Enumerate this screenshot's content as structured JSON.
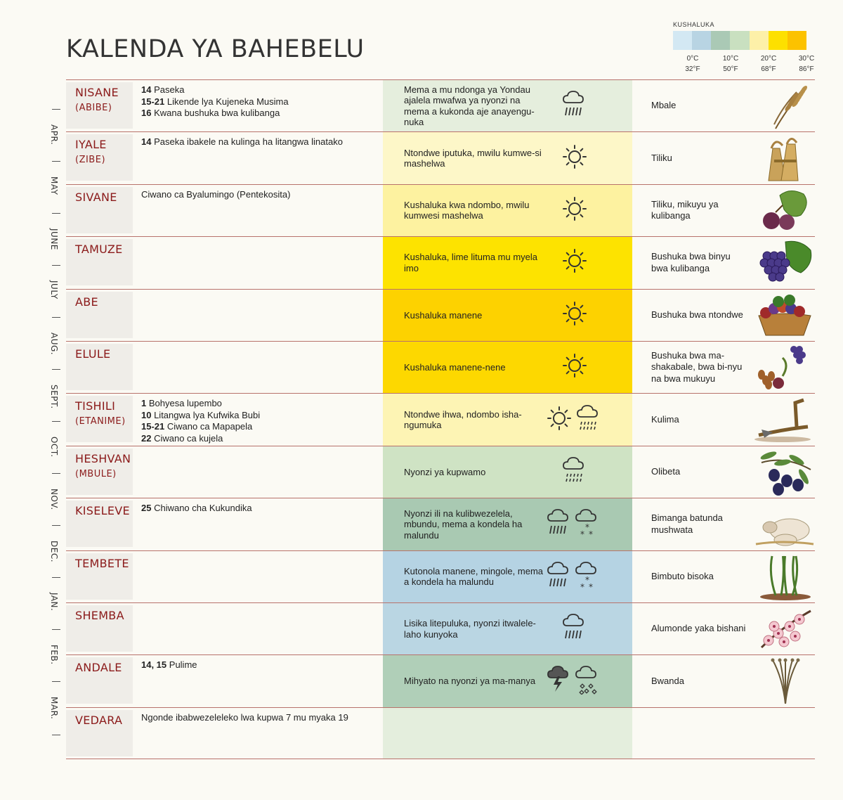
{
  "title": "KALENDA YA BAHEBELU",
  "legend": {
    "title": "KUSHALUKA",
    "colors": [
      "#d3e8f3",
      "#b8d4e3",
      "#aac9b5",
      "#c9e0c0",
      "#fdf0a8",
      "#fde000",
      "#fcc200"
    ],
    "ticks": [
      {
        "c": "0°C",
        "f": "32°F"
      },
      {
        "c": "10°C",
        "f": "50°F"
      },
      {
        "c": "20°C",
        "f": "68°F"
      },
      {
        "c": "30°C",
        "f": "86°F"
      }
    ]
  },
  "side_months": [
    "APR.",
    "MAY",
    "JUNE",
    "JULY",
    "AUG.",
    "SEPT.",
    "OCT.",
    "NOV.",
    "DEC.",
    "JAN.",
    "FEB.",
    "MAR."
  ],
  "rows": [
    {
      "month": "NISANE",
      "alt": "(ABIBE)",
      "events": [
        {
          "n": "14",
          "t": " Paseka"
        },
        {
          "n": "15-21",
          "t": " Likende lya Kujeneka Musima"
        },
        {
          "n": "16",
          "t": " Kwana bushuka bwa kulibanga"
        }
      ],
      "weather": "Mema a mu ndonga ya Yondau ajalela mwafwa ya nyonzi na mema a kukonda aje anayengu-nuka",
      "icons": [
        "rain-cloud-icon"
      ],
      "crop": "Mbale",
      "pic": "wheat-icon",
      "bg": "#e5eedd"
    },
    {
      "month": "IYALE",
      "alt": "(ZIBE)",
      "events": [
        {
          "n": "14",
          "t": " Paseka ibakele na kulinga ha litangwa linatako"
        }
      ],
      "weather": "Ntondwe iputuka, mwilu kumwe-si mashelwa",
      "icons": [
        "sun-icon"
      ],
      "crop": "Tiliku",
      "pic": "barley-sheaves-icon",
      "bg": "#fdf7c8"
    },
    {
      "month": "SIVANE",
      "alt": "",
      "events": [
        {
          "n": "",
          "t": "Ciwano ca Byalumingo (Pentekosita)"
        }
      ],
      "weather": "Kushaluka kwa ndombo, mwilu kumwesi mashelwa",
      "icons": [
        "sun-icon"
      ],
      "crop": "Tiliku, mikuyu ya kulibanga",
      "pic": "figs-icon",
      "bg": "#fdf2a0"
    },
    {
      "month": "TAMUZE",
      "alt": "",
      "events": [],
      "weather": "Kushaluka, lime lituma mu myela imo",
      "icons": [
        "sun-icon"
      ],
      "crop": "Bushuka bwa binyu bwa kulibanga",
      "pic": "grapes-icon",
      "bg": "#fde300"
    },
    {
      "month": "ABE",
      "alt": "",
      "events": [],
      "weather": "Kushaluka manene",
      "icons": [
        "sun-icon"
      ],
      "crop": "Bushuka bwa ntondwe",
      "pic": "fruit-basket-icon",
      "bg": "#fdd200"
    },
    {
      "month": "ELULE",
      "alt": "",
      "events": [],
      "weather": "Kushaluka manene-nene",
      "icons": [
        "sun-icon"
      ],
      "crop": "Bushuka bwa ma-shakabale, bwa bi-nyu na bwa mukuyu",
      "pic": "dates-grapes-icon",
      "bg": "#fdd800"
    },
    {
      "month": "TISHILI",
      "alt": "(ETANIME)",
      "events": [
        {
          "n": "1",
          "t": " Bohyesa lupembo"
        },
        {
          "n": "10",
          "t": " Litangwa lya Kufwika Bubi"
        },
        {
          "n": "15-21",
          "t": " Ciwano ca Mapapela"
        },
        {
          "n": "22",
          "t": " Ciwano ca kujela"
        }
      ],
      "weather": "Ntondwe ihwa, ndombo isha-ngumuka",
      "icons": [
        "sun-icon",
        "drizzle-cloud-icon"
      ],
      "crop": "Kulima",
      "pic": "plow-icon",
      "bg": "#fdf4b4"
    },
    {
      "month": "HESHVAN",
      "alt": "(MBULE)",
      "events": [],
      "weather": "Nyonzi ya kupwamo",
      "icons": [
        "drizzle-cloud-icon"
      ],
      "crop": "Olibeta",
      "pic": "olives-icon",
      "bg": "#cfe3c4"
    },
    {
      "month": "KISELEVE",
      "alt": "",
      "events": [
        {
          "n": "25",
          "t": " Chiwano cha Kukundika"
        }
      ],
      "weather": "Nyonzi ili na kulibwezelela, mbundu, mema a kondela ha malundu",
      "icons": [
        "rain-cloud-icon",
        "snow-cloud-icon"
      ],
      "crop": "Bimanga batunda mushwata",
      "pic": "sheep-icon",
      "bg": "#a9c9b2"
    },
    {
      "month": "TEMBETE",
      "alt": "",
      "events": [],
      "weather": "Kutonola manene, mingole, mema a kondela ha malundu",
      "icons": [
        "rain-cloud-icon",
        "snow-cloud-icon"
      ],
      "crop": "Bimbuto bisoka",
      "pic": "sprouts-icon",
      "bg": "#b5d3e3"
    },
    {
      "month": "SHEMBA",
      "alt": "",
      "events": [],
      "weather": "Lisika litepuluka, nyonzi itwalele-laho kunyoka",
      "icons": [
        "rain-cloud-icon"
      ],
      "crop": "Alumonde yaka bishani",
      "pic": "almond-blossom-icon",
      "bg": "#bad6e3"
    },
    {
      "month": "ANDALE",
      "alt": "",
      "events": [
        {
          "n": "14, 15",
          "t": " Pulime"
        }
      ],
      "weather": "Mihyato na nyonzi ya ma-manya",
      "icons": [
        "thunder-cloud-icon",
        "hail-cloud-icon"
      ],
      "crop": "Bwanda",
      "pic": "flax-icon",
      "bg": "#b0cfb8"
    },
    {
      "month": "VEDARA",
      "alt": "",
      "events": [
        {
          "n": "",
          "t": "Ngonde ibabwezeleleko lwa kupwa 7 mu myaka 19"
        }
      ],
      "weather": "",
      "icons": [],
      "crop": "",
      "pic": "",
      "bg": "#e4eedd"
    }
  ]
}
